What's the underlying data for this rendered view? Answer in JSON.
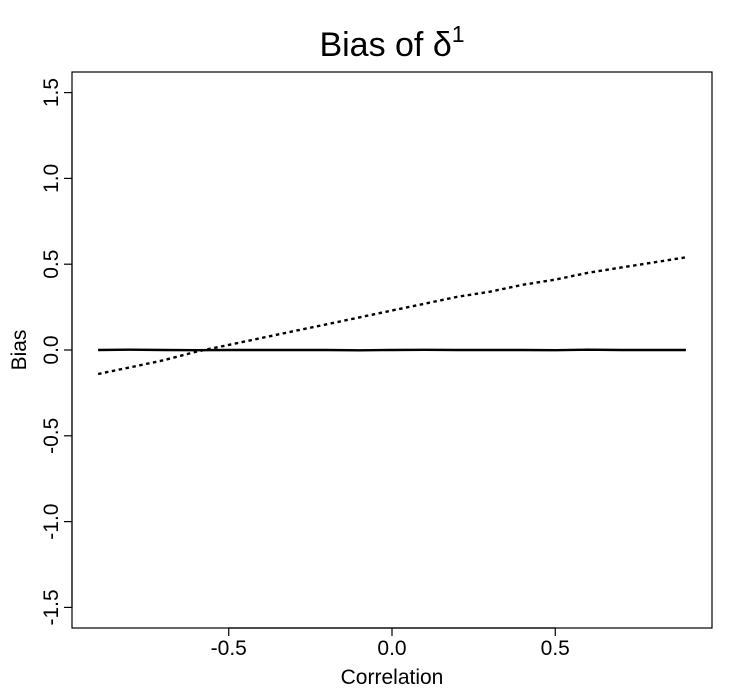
{
  "chart_data": {
    "type": "line",
    "title": "Bias of δ",
    "title_superscript": "1",
    "xlabel": "Correlation",
    "ylabel": "Bias",
    "xlim": [
      -0.98,
      0.98
    ],
    "ylim": [
      -1.62,
      1.62
    ],
    "x_ticks": [
      {
        "value": -0.5,
        "label": "-0.5"
      },
      {
        "value": 0.0,
        "label": "0.0"
      },
      {
        "value": 0.5,
        "label": "0.5"
      }
    ],
    "y_ticks": [
      {
        "value": -1.5,
        "label": "-1.5"
      },
      {
        "value": -1.0,
        "label": "-1.0"
      },
      {
        "value": -0.5,
        "label": "-0.5"
      },
      {
        "value": 0.0,
        "label": "0.0"
      },
      {
        "value": 0.5,
        "label": "0.5"
      },
      {
        "value": 1.0,
        "label": "1.0"
      },
      {
        "value": 1.5,
        "label": "1.5"
      }
    ],
    "grid": false,
    "legend": false,
    "series": [
      {
        "line_style": "solid",
        "color": "#000000",
        "x": [
          -0.9,
          -0.8,
          -0.7,
          -0.6,
          -0.5,
          -0.4,
          -0.3,
          -0.2,
          -0.1,
          0.0,
          0.1,
          0.2,
          0.3,
          0.4,
          0.5,
          0.6,
          0.7,
          0.8,
          0.9
        ],
        "y": [
          0.0,
          0.002,
          0.0,
          -0.001,
          0.0,
          0.0,
          0.0,
          0.0,
          -0.002,
          0.0,
          0.001,
          0.0,
          0.0,
          0.0,
          -0.001,
          0.002,
          0.0,
          0.0,
          0.0
        ]
      },
      {
        "line_style": "dotted",
        "color": "#000000",
        "x": [
          -0.9,
          -0.8,
          -0.7,
          -0.6,
          -0.5,
          -0.4,
          -0.3,
          -0.2,
          -0.1,
          0.0,
          0.1,
          0.2,
          0.3,
          0.4,
          0.5,
          0.6,
          0.7,
          0.8,
          0.9
        ],
        "y": [
          -0.14,
          -0.1,
          -0.06,
          -0.01,
          0.03,
          0.07,
          0.11,
          0.15,
          0.19,
          0.23,
          0.27,
          0.31,
          0.34,
          0.38,
          0.41,
          0.45,
          0.48,
          0.51,
          0.54
        ]
      }
    ]
  }
}
